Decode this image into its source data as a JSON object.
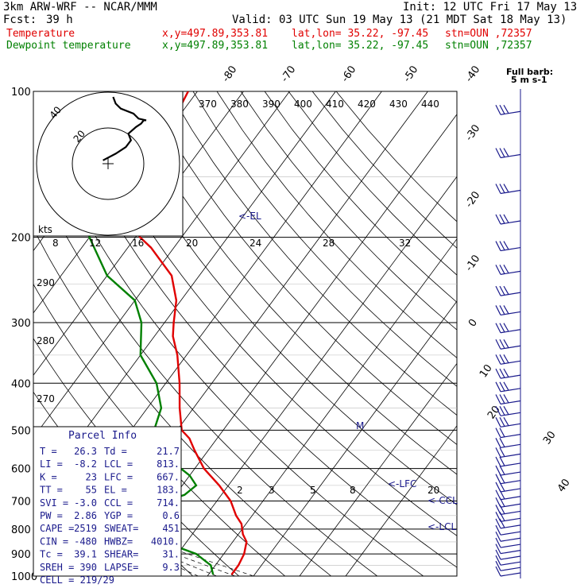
{
  "header": {
    "model": "3km ARW-WRF -- NCAR/MMM",
    "init": "Init: 12 UTC Fri 17 May 13",
    "fcst_label": "Fcst:",
    "fcst_value": "39 h",
    "valid": "Valid: 03 UTC Sun 19 May 13 (21 MDT Sat 18 May 13)",
    "temp_label": "Temperature",
    "dew_label": "Dewpoint temperature",
    "xy": "x,y=497.89,353.81",
    "latlon": "lat,lon= 35.22, -97.45",
    "stn": "stn=OUN ,72357"
  },
  "colors": {
    "temperature": "#e00000",
    "dewpoint": "#008000",
    "barb": "#1a1a8c",
    "parcel_text": "#1a1a8c"
  },
  "chart_data": {
    "type": "line",
    "pressure_levels": [
      100,
      200,
      300,
      400,
      500,
      600,
      700,
      800,
      900,
      1000
    ],
    "isotherms": [
      -90,
      -80,
      -70,
      -60,
      -50,
      -40,
      -30,
      -20,
      -10,
      0,
      10,
      20,
      30,
      40
    ],
    "isotherm_labels_top": [
      "-80",
      "-70",
      "-60",
      "-50",
      "-40"
    ],
    "isotherm_labels_right": [
      "-30",
      "-20",
      "-10",
      "0",
      "10",
      "20",
      "30",
      "40"
    ],
    "theta_e_labels": [
      "370",
      "380",
      "390",
      "400",
      "410",
      "420",
      "430",
      "440"
    ],
    "theta_labels": [
      "290",
      "280",
      "270"
    ],
    "mixing_ratio_labels": [
      "2",
      "3",
      "5",
      "8",
      "20"
    ],
    "series": [
      {
        "name": "Temperature",
        "p": [
          993,
          950,
          900,
          850,
          820,
          780,
          750,
          700,
          650,
          600,
          550,
          520,
          500,
          450,
          400,
          350,
          320,
          300,
          270,
          240,
          210,
          200,
          190,
          170,
          150,
          130,
          120,
          110,
          100
        ],
        "t": [
          25.0,
          25.0,
          24.4,
          23.0,
          21.0,
          19.0,
          16.5,
          13.0,
          8.0,
          2.0,
          -3.0,
          -6.0,
          -9.0,
          -13.0,
          -17.0,
          -22.0,
          -26.0,
          -28.0,
          -31.0,
          -36.0,
          -45.0,
          -49.0,
          -52.0,
          -53.0,
          -56.0,
          -58.0,
          -59.0,
          -61.0,
          -62.0
        ]
      },
      {
        "name": "Dewpoint temperature",
        "p": [
          993,
          950,
          900,
          850,
          820,
          800,
          780,
          760,
          740,
          700,
          680,
          650,
          620,
          600,
          550,
          520,
          500,
          450,
          400,
          350,
          300,
          270,
          240,
          200,
          190,
          170,
          150,
          130,
          110,
          100
        ],
        "t": [
          21.0,
          19.0,
          14.0,
          5.0,
          -3.0,
          -7.0,
          -8.0,
          -8.0,
          -6.0,
          -1.0,
          2.0,
          3.0,
          0.0,
          -3.0,
          -10.0,
          -14.0,
          -15.0,
          -17.0,
          -22.0,
          -30.0,
          -35.0,
          -40.0,
          -50.0,
          -60.0,
          -62.0,
          -65.0,
          -70.0,
          -72.0,
          -75.0,
          -77.0
        ]
      }
    ],
    "annotations": [
      "<-EL",
      "<-LFC",
      "<-CCL",
      "<-LCL"
    ],
    "hodograph": {
      "units": "kts",
      "ring_labels": [
        "20",
        "40"
      ],
      "axis_labels": [
        "8",
        "12",
        "16",
        "20",
        "24",
        "28",
        "32"
      ],
      "u": [
        -2,
        3,
        7,
        9,
        8,
        11,
        13,
        14,
        15,
        12,
        10,
        5,
        3,
        2
      ],
      "v": [
        2,
        6,
        10,
        14,
        18,
        22,
        24,
        26,
        26,
        27,
        30,
        33,
        36,
        40
      ]
    },
    "wind_barbs": {
      "legend": "Full barb:",
      "legend_units": "5 m s-1"
    }
  },
  "parcel_info": {
    "title": "Parcel Info",
    "rows": [
      [
        "T  =",
        "26.3",
        "Td =",
        "21.7"
      ],
      [
        "LI =",
        "-8.2",
        "LCL =",
        "813."
      ],
      [
        "K  =",
        "23",
        "LFC =",
        "667."
      ],
      [
        "TT =",
        "55",
        "EL  =",
        "183."
      ],
      [
        "SVI =",
        "-3.0",
        "CCL =",
        "714."
      ],
      [
        "PW =",
        "2.86",
        "YGP =",
        "0.6"
      ],
      [
        "CAPE =",
        "2519",
        "SWEAT=",
        "451"
      ],
      [
        "CIN =",
        "-480",
        "HWBZ=",
        "4010."
      ],
      [
        "Tc =",
        "39.1",
        "SHEAR=",
        "31."
      ],
      [
        "SREH =",
        "390",
        "LAPSE=",
        "9.3"
      ]
    ],
    "cell": "CELL = 219/29"
  }
}
